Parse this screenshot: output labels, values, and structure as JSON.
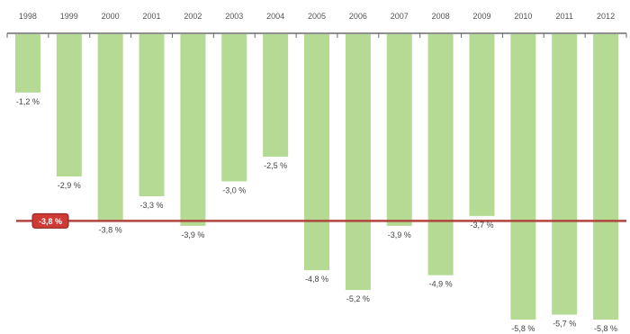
{
  "chart_data": {
    "type": "bar",
    "title": "",
    "xlabel": "",
    "ylabel": "",
    "categories": [
      "1998",
      "1999",
      "2000",
      "2001",
      "2002",
      "2003",
      "2004",
      "2005",
      "2006",
      "2007",
      "2008",
      "2009",
      "2010",
      "2011",
      "2012"
    ],
    "values": [
      -1.2,
      -2.9,
      -3.8,
      -3.3,
      -3.9,
      -3.0,
      -2.5,
      -4.8,
      -5.2,
      -3.9,
      -4.9,
      -3.7,
      -5.8,
      -5.7,
      -5.8
    ],
    "value_labels": [
      "-1,2 %",
      "-2,9 %",
      "-3,8 %",
      "-3,3 %",
      "-3,9 %",
      "-3,0 %",
      "-2,5 %",
      "-4,8 %",
      "-5,2 %",
      "-3,9 %",
      "-4,9 %",
      "-3,7 %",
      "-5,8 %",
      "-5,7 %",
      "-5,8 %"
    ],
    "ylim": [
      -6.0,
      0
    ],
    "reference_line": {
      "value": -3.8,
      "label": "-3,8 %"
    },
    "colors": {
      "bar": "#b4da93",
      "reference_line": "#b0463e",
      "reference_badge": "#cf3a35",
      "axis": "#6b6b6b"
    },
    "grid": false,
    "legend": "none"
  }
}
